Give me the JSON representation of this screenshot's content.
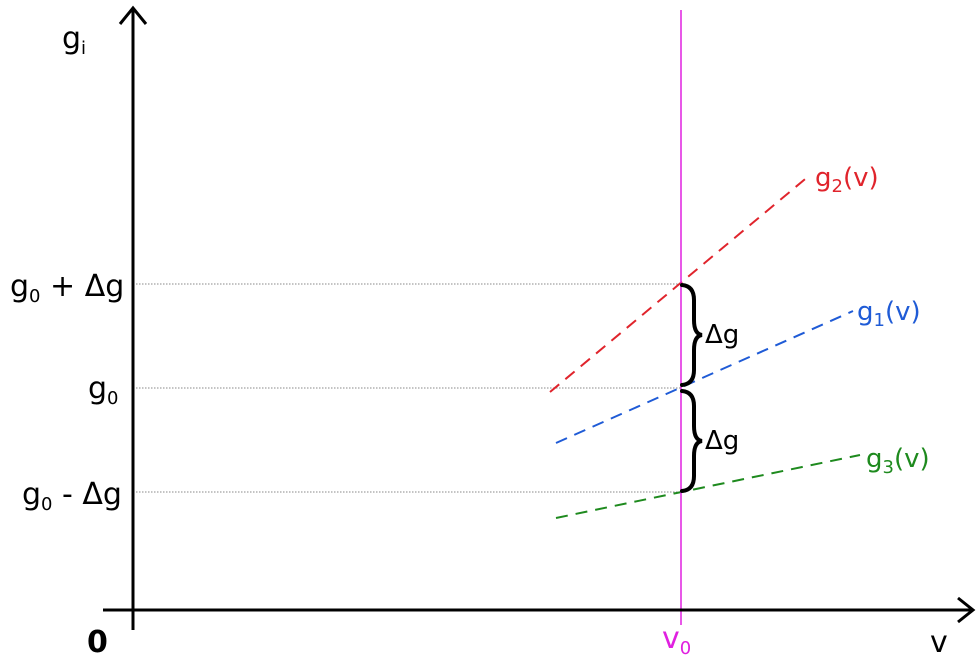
{
  "axes": {
    "y_label": {
      "base": "g",
      "sub": "i"
    },
    "x_label": "v",
    "origin": "0"
  },
  "y_ticks": [
    {
      "base": "g",
      "sub": "0",
      "rest": " + Δg"
    },
    {
      "base": "g",
      "sub": "0",
      "rest": ""
    },
    {
      "base": "g",
      "sub": "0",
      "rest": " - Δg"
    }
  ],
  "v0": {
    "base": "v",
    "sub": "0",
    "color": "#e020e0"
  },
  "braces": [
    {
      "label": "Δg"
    },
    {
      "label": "Δg"
    }
  ],
  "lines": [
    {
      "base": "g",
      "sub": "2",
      "rest": "(v)",
      "color": "#e0242c"
    },
    {
      "base": "g",
      "sub": "1",
      "rest": "(v)",
      "color": "#1f5bd6"
    },
    {
      "base": "g",
      "sub": "3",
      "rest": "(v)",
      "color": "#1e8a1e"
    }
  ],
  "colors": {
    "axis": "#000000",
    "guide": "#888888"
  }
}
